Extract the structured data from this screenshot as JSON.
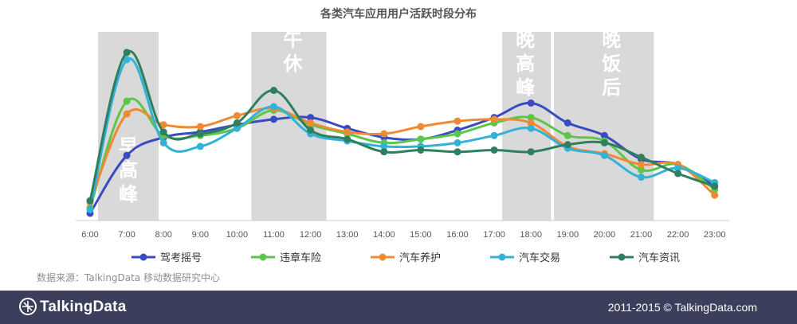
{
  "chart_data": {
    "type": "line",
    "title": "各类汽车应用用户活跃时段分布",
    "xlabel": "",
    "ylabel": "",
    "categories": [
      "6:00",
      "7:00",
      "8:00",
      "9:00",
      "10:00",
      "11:00",
      "12:00",
      "13:00",
      "14:00",
      "15:00",
      "16:00",
      "17:00",
      "18:00",
      "19:00",
      "20:00",
      "21:00",
      "22:00",
      "23:00"
    ],
    "ylim": [
      0,
      100
    ],
    "grid": false,
    "legend_position": "bottom",
    "highlight_bands": [
      {
        "label": "早高峰",
        "from": "6:00",
        "to": "7:00"
      },
      {
        "label": "午休",
        "from": "10:00",
        "to": "12:00"
      },
      {
        "label": "晚高峰",
        "from": "17:00",
        "to": "18:00"
      },
      {
        "label": "晚饭后",
        "from": "19:00",
        "to": "20:00"
      }
    ],
    "series": [
      {
        "name": "驾考摇号",
        "color": "#3a4bc1",
        "values": [
          4,
          36,
          46,
          49,
          53,
          56,
          57,
          51,
          46,
          45,
          50,
          57,
          65,
          54,
          47,
          34,
          31,
          19
        ]
      },
      {
        "name": "违章车险",
        "color": "#5cc64a",
        "values": [
          7,
          66,
          47,
          47,
          51,
          61,
          53,
          48,
          43,
          45,
          48,
          54,
          57,
          47,
          44,
          28,
          31,
          17
        ]
      },
      {
        "name": "汽车养护",
        "color": "#f08a32",
        "values": [
          10,
          59,
          53,
          52,
          58,
          62,
          54,
          49,
          48,
          52,
          55,
          56,
          54,
          41,
          37,
          31,
          31,
          14
        ]
      },
      {
        "name": "汽车交易",
        "color": "#33b2d8",
        "values": [
          6,
          89,
          43,
          41,
          51,
          63,
          48,
          44,
          41,
          41,
          43,
          47,
          51,
          40,
          36,
          24,
          29,
          21
        ]
      },
      {
        "name": "汽车资讯",
        "color": "#2e7f5f",
        "values": [
          11,
          93,
          49,
          48,
          54,
          72,
          50,
          45,
          38,
          39,
          38,
          39,
          38,
          42,
          43,
          35,
          26,
          19
        ]
      }
    ]
  },
  "source_note": "数据来源：TalkingData 移动数据研究中心",
  "footer": {
    "brand": "TalkingData",
    "copyright": "2011-2015 © TalkingData.com",
    "colors": {
      "bar": "#3b3f5c",
      "text": "#ffffff"
    }
  }
}
